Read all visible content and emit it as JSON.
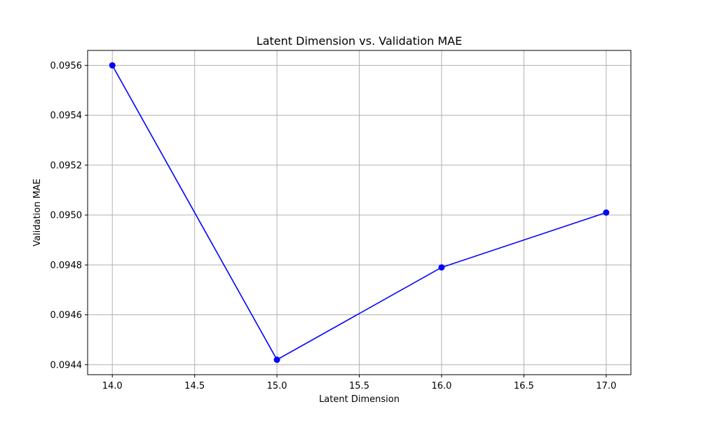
{
  "chart_data": {
    "type": "line",
    "title": "Latent Dimension vs. Validation MAE",
    "xlabel": "Latent Dimension",
    "ylabel": "Validation MAE",
    "x": [
      14,
      15,
      16,
      17
    ],
    "series": [
      {
        "values": [
          0.0956,
          0.09442,
          0.09479,
          0.09501
        ],
        "color": "#0000ff",
        "marker": "circle"
      }
    ],
    "xlim": [
      13.85,
      17.15
    ],
    "ylim": [
      0.09436,
      0.09566
    ],
    "xticks": [
      14.0,
      14.5,
      15.0,
      15.5,
      16.0,
      16.5,
      17.0
    ],
    "xtick_labels": [
      "14.0",
      "14.5",
      "15.0",
      "15.5",
      "16.0",
      "16.5",
      "17.0"
    ],
    "yticks": [
      0.0944,
      0.0946,
      0.0948,
      0.095,
      0.0952,
      0.0954,
      0.0956
    ],
    "ytick_labels": [
      "0.0944",
      "0.0946",
      "0.0948",
      "0.0950",
      "0.0952",
      "0.0954",
      "0.0956"
    ],
    "grid": true,
    "grid_color": "#b0b0b0"
  }
}
